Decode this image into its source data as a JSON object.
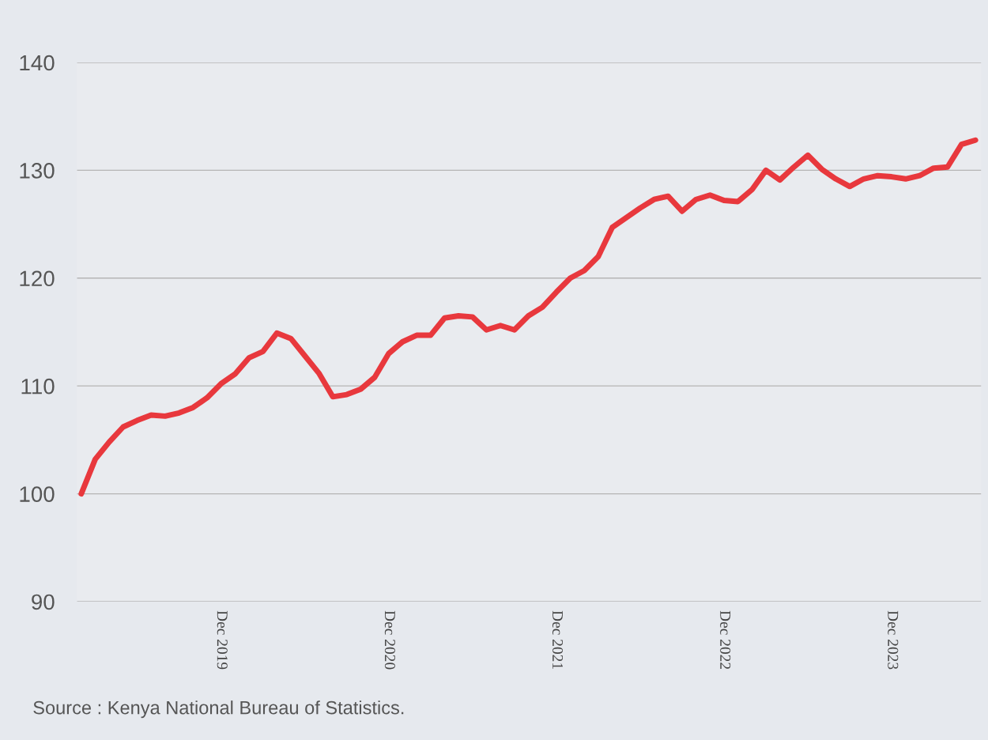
{
  "chart_data": {
    "type": "line",
    "categories": [
      null,
      null,
      null,
      null,
      null,
      null,
      null,
      null,
      null,
      null,
      "Dec 2019",
      null,
      null,
      null,
      null,
      null,
      null,
      null,
      null,
      null,
      null,
      null,
      "Dec 2020",
      null,
      null,
      null,
      null,
      null,
      null,
      null,
      null,
      null,
      null,
      null,
      "Dec 2021",
      null,
      null,
      null,
      null,
      null,
      null,
      null,
      null,
      null,
      null,
      null,
      "Dec 2022",
      null,
      null,
      null,
      null,
      null,
      null,
      null,
      null,
      null,
      null,
      null,
      "Dec 2023",
      null,
      null,
      null,
      null,
      null,
      null
    ],
    "series": [
      {
        "color": "#e8383d",
        "values": [
          100,
          103.2,
          104.8,
          106.2,
          106.8,
          107.3,
          107.2,
          107.5,
          108.0,
          108.9,
          110.2,
          111.1,
          112.6,
          113.2,
          114.9,
          114.4,
          112.8,
          111.2,
          109.0,
          109.2,
          109.7,
          110.8,
          113.0,
          114.1,
          114.7,
          114.7,
          116.3,
          116.5,
          116.4,
          115.2,
          115.6,
          115.2,
          116.5,
          117.3,
          118.7,
          120.0,
          120.7,
          122.0,
          124.7,
          125.6,
          126.5,
          127.3,
          127.6,
          126.2,
          127.3,
          127.7,
          127.2,
          127.1,
          128.2,
          130.0,
          129.1,
          130.3,
          131.4,
          130.1,
          129.2,
          128.5,
          129.2,
          129.5,
          129.4,
          129.2,
          129.5,
          130.2,
          130.3,
          132.4,
          132.8
        ]
      }
    ],
    "ylim": [
      90,
      140
    ],
    "yticks": [
      90,
      100,
      110,
      120,
      130,
      140
    ],
    "grid": "y",
    "marker": "none",
    "line_style": "solid",
    "annotations": [
      "Source : Kenya National Bureau of Statistics."
    ]
  }
}
